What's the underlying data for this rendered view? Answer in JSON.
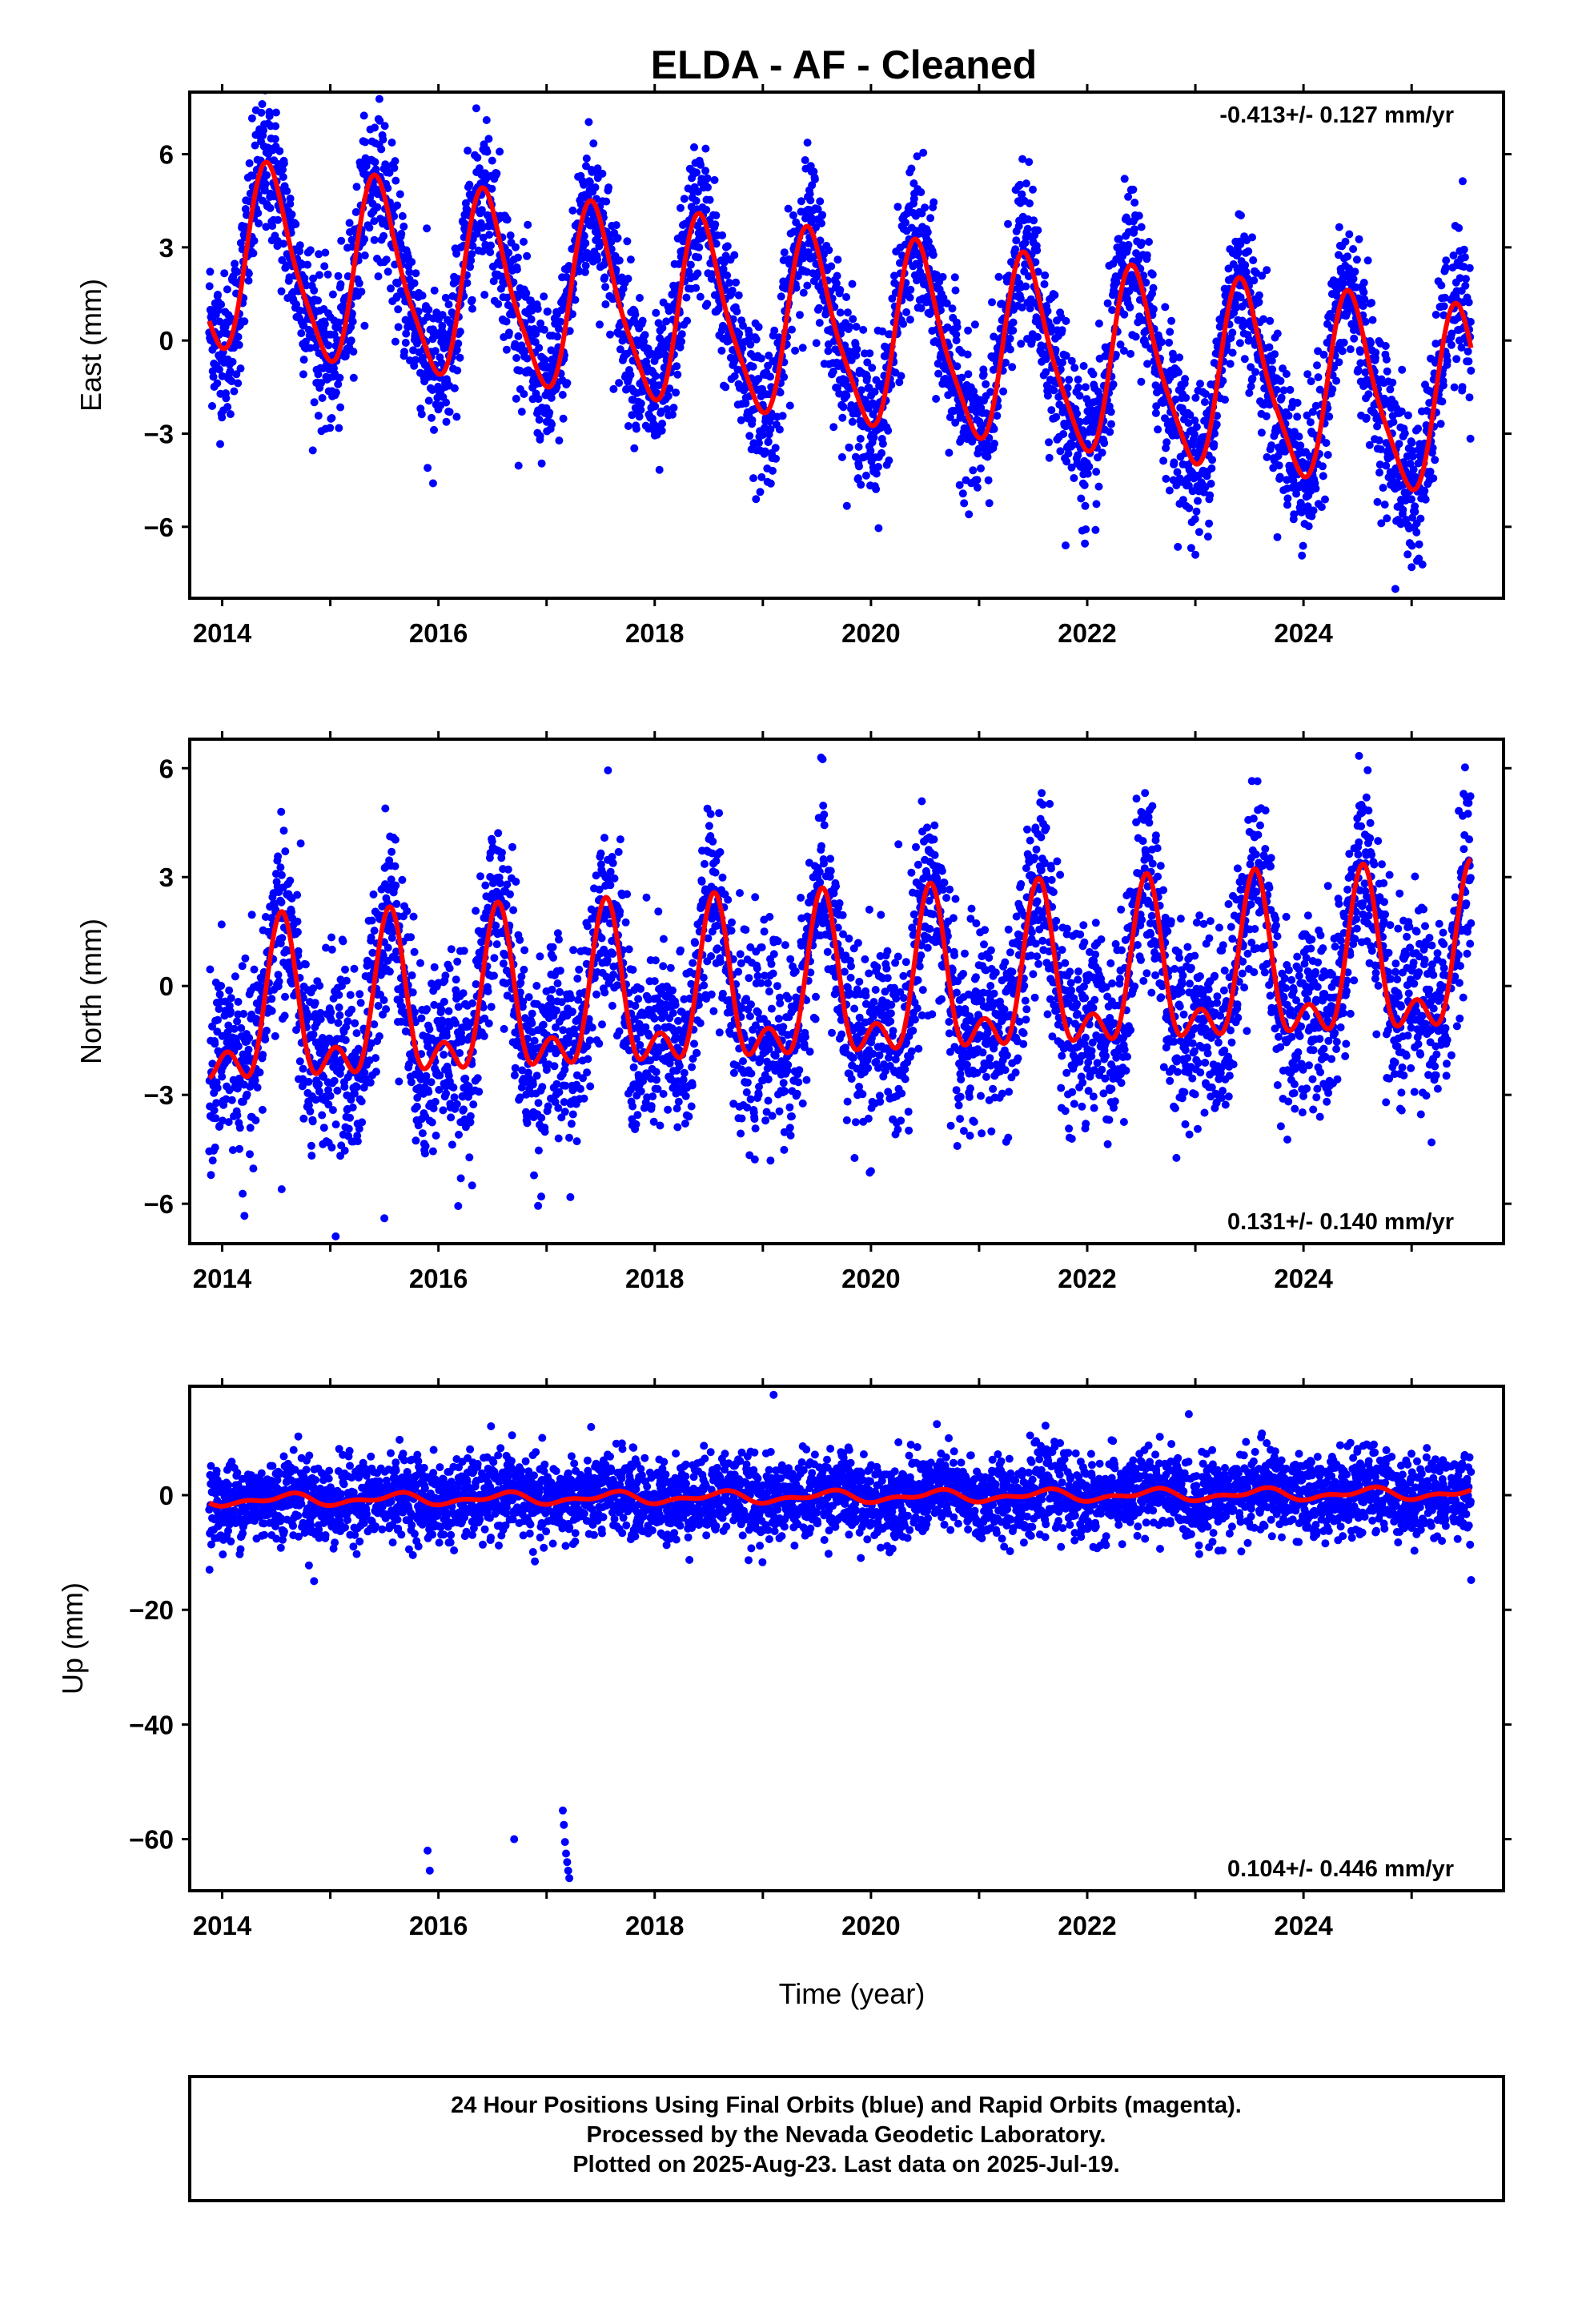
{
  "title": "ELDA  - AF - Cleaned",
  "xlabel": "Time (year)",
  "colors": {
    "points": "#0000ff",
    "fit": "#ff0000",
    "frame": "#000000"
  },
  "footer": [
    "24 Hour Positions Using Final Orbits (blue) and Rapid Orbits (magenta).",
    "Processed by the Nevada Geodetic Laboratory.",
    "Plotted on 2025-Aug-23. Last data on 2025-Jul-19."
  ],
  "chart_data": [
    {
      "type": "scatter",
      "panel": "east",
      "ylabel": "East (mm)",
      "rate_text": "-0.413+/- 0.127 mm/yr",
      "rate_position": "top-right",
      "xlim": [
        2013.7,
        2025.85
      ],
      "ylim": [
        -8.3,
        8.0
      ],
      "xticks": [
        2014,
        2016,
        2018,
        2020,
        2022,
        2024
      ],
      "yticks": [
        -6,
        -3,
        0,
        3,
        6
      ],
      "yticklabels": [
        "−6",
        "−3",
        "0",
        "3",
        "6"
      ],
      "x_range": [
        2013.88,
        2025.55
      ],
      "fit": {
        "offset": 0.35,
        "trend_mm_per_yr": -0.413,
        "annual_amplitude": 2.9,
        "annual_peak_fraction": 0.45,
        "semiannual_amplitude": 0.6,
        "semiannual_peak_fraction": 0.36,
        "scatter": 1.2
      },
      "outliers": [
        [
          2015.9,
          -4.1
        ],
        [
          2015.95,
          -4.6
        ],
        [
          2021.8,
          -6.6
        ],
        [
          2023.0,
          -6.9
        ],
        [
          2024.85,
          -8.0
        ],
        [
          2025.0,
          -7.3
        ]
      ],
      "series": [
        {
          "name": "24 Hour Positions",
          "role": "points"
        },
        {
          "name": "model fit",
          "role": "curve"
        }
      ]
    },
    {
      "type": "scatter",
      "panel": "north",
      "ylabel": "North (mm)",
      "rate_text": "0.131+/- 0.140 mm/yr",
      "rate_position": "bottom-right",
      "xlim": [
        2013.7,
        2025.85
      ],
      "ylim": [
        -7.1,
        6.8
      ],
      "xticks": [
        2014,
        2016,
        2018,
        2020,
        2022,
        2024
      ],
      "yticks": [
        -6,
        -3,
        0,
        3,
        6
      ],
      "yticklabels": [
        "−6",
        "−3",
        "0",
        "3",
        "6"
      ],
      "x_range": [
        2013.88,
        2025.55
      ],
      "fit": {
        "offset": -0.3,
        "trend_mm_per_yr": 0.131,
        "annual_amplitude": 1.9,
        "annual_peak_fraction": 0.55,
        "semiannual_amplitude": 1.1,
        "semiannual_peak_fraction": 0.55,
        "scatter": 1.3
      },
      "outliers": [
        [
          2015.05,
          -6.9
        ],
        [
          2016.95,
          -5.8
        ],
        [
          2020.0,
          -5.1
        ],
        [
          2014.55,
          -5.6
        ],
        [
          2015.5,
          -6.4
        ]
      ],
      "series": [
        {
          "name": "24 Hour Positions",
          "role": "points"
        },
        {
          "name": "model fit",
          "role": "curve"
        }
      ]
    },
    {
      "type": "scatter",
      "panel": "up",
      "ylabel": "Up (mm)",
      "rate_text": "0.104+/- 0.446 mm/yr",
      "rate_position": "bottom-right",
      "xlim": [
        2013.7,
        2025.85
      ],
      "ylim": [
        -69,
        19
      ],
      "xticks": [
        2014,
        2016,
        2018,
        2020,
        2022,
        2024
      ],
      "yticks": [
        -60,
        -40,
        -20,
        0
      ],
      "yticklabels": [
        "−60",
        "−40",
        "−20",
        "0"
      ],
      "x_range": [
        2013.88,
        2025.55
      ],
      "fit": {
        "offset": -0.3,
        "trend_mm_per_yr": 0.104,
        "annual_amplitude": 0.8,
        "annual_peak_fraction": 0.6,
        "semiannual_amplitude": 0.5,
        "semiannual_peak_fraction": 0.2,
        "scatter": 3.5
      },
      "outliers": [
        [
          2015.9,
          -62.0
        ],
        [
          2015.92,
          -65.5
        ],
        [
          2016.7,
          -60.0
        ],
        [
          2017.15,
          -55.0
        ],
        [
          2017.16,
          -57.5
        ],
        [
          2017.17,
          -60.5
        ],
        [
          2017.18,
          -62.5
        ],
        [
          2017.19,
          -64.0
        ],
        [
          2017.2,
          -65.5
        ],
        [
          2017.21,
          -66.8
        ],
        [
          2019.1,
          17.5
        ],
        [
          2014.85,
          -15.0
        ],
        [
          2025.55,
          -14.8
        ]
      ],
      "series": [
        {
          "name": "24 Hour Positions",
          "role": "points"
        },
        {
          "name": "model fit",
          "role": "curve"
        }
      ]
    }
  ]
}
